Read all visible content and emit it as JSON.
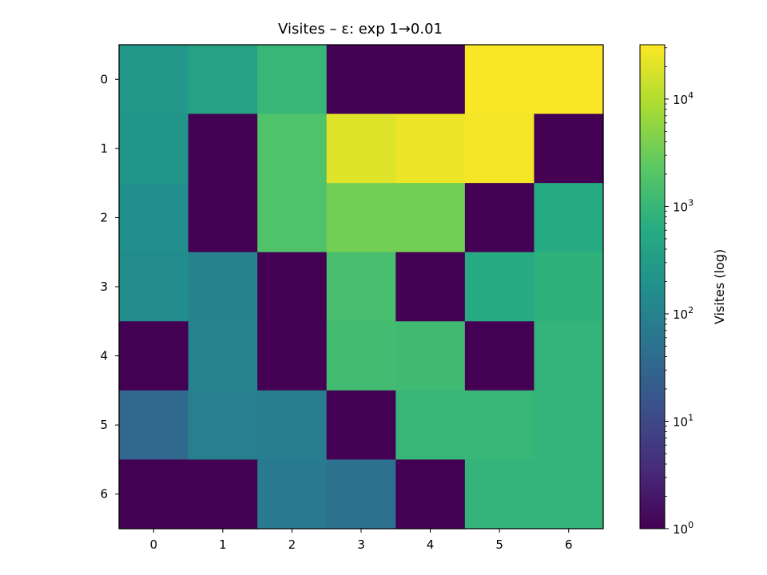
{
  "chart_data": {
    "type": "heatmap",
    "title": "Visites – ε: exp 1→0.01",
    "xlabel": "",
    "ylabel": "",
    "x_ticks": [
      "0",
      "1",
      "2",
      "3",
      "4",
      "5",
      "6"
    ],
    "y_ticks": [
      "0",
      "1",
      "2",
      "3",
      "4",
      "5",
      "6"
    ],
    "values": [
      [
        250,
        400,
        1000,
        1,
        1,
        30000,
        30000
      ],
      [
        220,
        1,
        1800,
        20000,
        25000,
        28000,
        1
      ],
      [
        180,
        1,
        1800,
        3500,
        3500,
        1,
        600
      ],
      [
        150,
        100,
        1,
        1500,
        1,
        600,
        800
      ],
      [
        1,
        110,
        1,
        1300,
        1200,
        1,
        900
      ],
      [
        35,
        90,
        80,
        1,
        1000,
        1000,
        900
      ],
      [
        1,
        1,
        70,
        50,
        1,
        900,
        900
      ]
    ],
    "colorbar": {
      "label": "Visites (log)",
      "scale": "log",
      "range": [
        1,
        32000
      ],
      "colormap": "viridis",
      "ticks": [
        {
          "value": 1,
          "base": "10",
          "exp": "0"
        },
        {
          "value": 10,
          "base": "10",
          "exp": "1"
        },
        {
          "value": 100,
          "base": "10",
          "exp": "2"
        },
        {
          "value": 1000,
          "base": "10",
          "exp": "3"
        },
        {
          "value": 10000,
          "base": "10",
          "exp": "4"
        }
      ]
    }
  }
}
